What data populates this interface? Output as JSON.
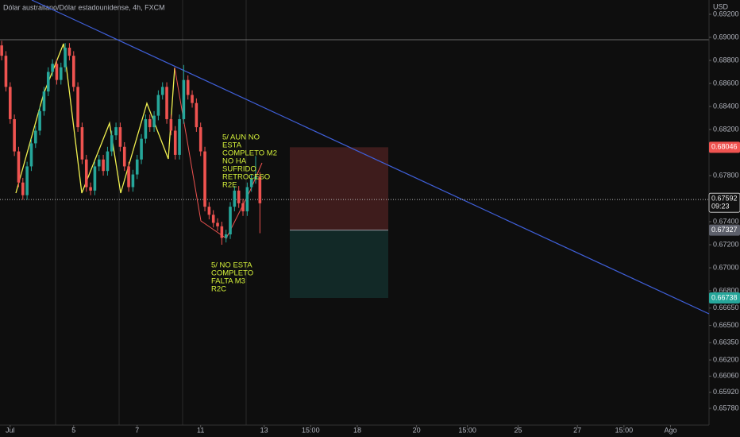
{
  "chart_data": {
    "type": "candlestick",
    "title": "Dólar australiano/Dólar estadounidense, 4h, FXCM",
    "currency": "USD",
    "up_color": "#26a69a",
    "down_color": "#ef5350",
    "open": [
      0.6893,
      0.6884,
      0.6857,
      0.6829,
      0.6801,
      0.6774,
      0.6763,
      0.6788,
      0.6808,
      0.6819,
      0.6836,
      0.6853,
      0.687,
      0.6877,
      0.6863,
      0.6874,
      0.6891,
      0.6884,
      0.6857,
      0.6822,
      0.6794,
      0.677,
      0.6767,
      0.6788,
      0.6794,
      0.6784,
      0.6801,
      0.6815,
      0.6822,
      0.6805,
      0.6788,
      0.677,
      0.6781,
      0.6794,
      0.6812,
      0.6829,
      0.6822,
      0.6832,
      0.685,
      0.6857,
      0.6829,
      0.6819,
      0.6798,
      0.6829,
      0.6863,
      0.685,
      0.6843,
      0.6822,
      0.6801,
      0.6753,
      0.6746,
      0.6739,
      0.6736,
      0.6726,
      0.6729,
      0.6753,
      0.6767,
      0.6756,
      0.6749,
      0.677,
      0.6777,
      0.6779
    ],
    "high": [
      0.6897,
      0.6888,
      0.6861,
      0.6833,
      0.6805,
      0.6778,
      0.6792,
      0.6812,
      0.6823,
      0.684,
      0.6857,
      0.6874,
      0.6881,
      0.6881,
      0.6878,
      0.6895,
      0.6895,
      0.6888,
      0.6861,
      0.6826,
      0.6798,
      0.6774,
      0.6792,
      0.6798,
      0.6798,
      0.6805,
      0.6819,
      0.6826,
      0.6826,
      0.6809,
      0.6792,
      0.6785,
      0.6798,
      0.6816,
      0.6833,
      0.6833,
      0.6836,
      0.6854,
      0.6861,
      0.6861,
      0.6833,
      0.6823,
      0.6833,
      0.6876,
      0.6867,
      0.6854,
      0.6847,
      0.6826,
      0.6805,
      0.6757,
      0.675,
      0.6743,
      0.674,
      0.6733,
      0.6757,
      0.6771,
      0.6771,
      0.676,
      0.6774,
      0.6781,
      0.6797,
      0.6783
    ],
    "low": [
      0.688,
      0.6853,
      0.6825,
      0.6797,
      0.677,
      0.6759,
      0.6759,
      0.6784,
      0.6804,
      0.6815,
      0.6832,
      0.6849,
      0.6866,
      0.6859,
      0.6859,
      0.687,
      0.688,
      0.6853,
      0.6818,
      0.679,
      0.6766,
      0.6763,
      0.6763,
      0.6784,
      0.678,
      0.678,
      0.6797,
      0.6811,
      0.6801,
      0.6784,
      0.6766,
      0.6766,
      0.6777,
      0.679,
      0.6808,
      0.6818,
      0.6818,
      0.6828,
      0.6846,
      0.6825,
      0.6815,
      0.6794,
      0.6794,
      0.6825,
      0.6846,
      0.6839,
      0.6818,
      0.6797,
      0.6749,
      0.6742,
      0.6735,
      0.6732,
      0.672,
      0.6722,
      0.6725,
      0.6749,
      0.6752,
      0.6745,
      0.6745,
      0.6766,
      0.6773,
      0.673
    ],
    "close": [
      0.6884,
      0.6857,
      0.6829,
      0.6801,
      0.6774,
      0.6763,
      0.6788,
      0.6808,
      0.6819,
      0.6836,
      0.6853,
      0.687,
      0.6877,
      0.6863,
      0.6874,
      0.6891,
      0.6884,
      0.6857,
      0.6822,
      0.6794,
      0.677,
      0.6767,
      0.6788,
      0.6794,
      0.6784,
      0.6801,
      0.6815,
      0.6822,
      0.6805,
      0.6788,
      0.677,
      0.6781,
      0.6794,
      0.6812,
      0.6829,
      0.6822,
      0.6832,
      0.685,
      0.6857,
      0.6829,
      0.6819,
      0.6798,
      0.6829,
      0.6863,
      0.685,
      0.6843,
      0.6822,
      0.6801,
      0.6753,
      0.6746,
      0.6739,
      0.6736,
      0.6726,
      0.6729,
      0.6753,
      0.6767,
      0.6756,
      0.6749,
      0.677,
      0.6777,
      0.6779,
      0.6756
    ],
    "xlim": [
      -0.4,
      167.1
    ],
    "xticks": [
      {
        "value": 2,
        "label": "Jul"
      },
      {
        "value": 17,
        "label": "5"
      },
      {
        "value": 32,
        "label": "7"
      },
      {
        "value": 47,
        "label": "11"
      },
      {
        "value": 62,
        "label": "13"
      },
      {
        "value": 73,
        "label": "15:00"
      },
      {
        "value": 84,
        "label": "18"
      },
      {
        "value": 98,
        "label": "20"
      },
      {
        "value": 110,
        "label": "15:00"
      },
      {
        "value": 122,
        "label": "25"
      },
      {
        "value": 136,
        "label": "27"
      },
      {
        "value": 147,
        "label": "15:00"
      },
      {
        "value": 158,
        "label": "Ago"
      }
    ],
    "ylim": [
      0.65635,
      0.69324
    ],
    "yticks": [
      {
        "value": 0.692,
        "label": "0.69200"
      },
      {
        "value": 0.69,
        "label": "0.69000"
      },
      {
        "value": 0.688,
        "label": "0.68800"
      },
      {
        "value": 0.686,
        "label": "0.68600"
      },
      {
        "value": 0.684,
        "label": "0.68400"
      },
      {
        "value": 0.682,
        "label": "0.68200"
      },
      {
        "value": 0.678,
        "label": "0.67800"
      },
      {
        "value": 0.674,
        "label": "0.67400"
      },
      {
        "value": 0.672,
        "label": "0.67200"
      },
      {
        "value": 0.67,
        "label": "0.67000"
      },
      {
        "value": 0.668,
        "label": "0.66800"
      },
      {
        "value": 0.6665,
        "label": "0.66650"
      },
      {
        "value": 0.665,
        "label": "0.66500"
      },
      {
        "value": 0.6635,
        "label": "0.66350"
      },
      {
        "value": 0.662,
        "label": "0.66200"
      },
      {
        "value": 0.6606,
        "label": "0.66060"
      },
      {
        "value": 0.6592,
        "label": "0.65920"
      },
      {
        "value": 0.6578,
        "label": "0.65780"
      }
    ],
    "stop_price": 0.68046,
    "last_price": 0.67592,
    "countdown": "09:23",
    "entry_price": 0.67327,
    "target_price": 0.66738,
    "annotations": [
      [
        "5/ AUN NO",
        "ESTA",
        "COMPLETO M2",
        "NO HA",
        "SUFRIDO",
        "RETROCESO",
        "R2E"
      ],
      [
        "5/ NO ESTA",
        "COMPLETO",
        "FALTA M3",
        "R2C"
      ]
    ]
  }
}
